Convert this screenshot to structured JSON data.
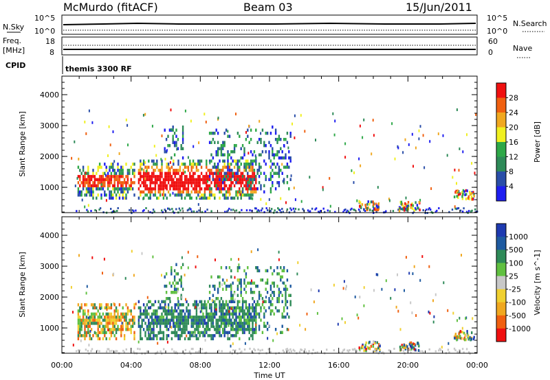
{
  "header": {
    "station": "McMurdo (fitACF)",
    "beam": "Beam 03",
    "date": "15/Jun/2011"
  },
  "left_labels": {
    "nsky": "N.Sky",
    "nsky_top": "10^5",
    "nsky_bot": "10^0",
    "freq": "Freq.",
    "freq_unit": "[MHz]",
    "freq_top": "18",
    "freq_bot": "8",
    "cpid": "CPID",
    "cpid_value": "themis 3300 RF"
  },
  "right_labels": {
    "nsearch": "N.Search",
    "nsearch_top": "10^5",
    "nsearch_bot": "10^0",
    "nave": "Nave",
    "nave_top": "60",
    "nave_bot": "0"
  },
  "colors": {
    "power": [
      "#1e1ef0",
      "#2a4ea8",
      "#2e8a58",
      "#2ea848",
      "#f0f020",
      "#f0a820",
      "#f06010",
      "#f01010"
    ],
    "velocity": [
      "#f01010",
      "#f06010",
      "#f0a820",
      "#f0d030",
      "#c8c8c8",
      "#60c040",
      "#2e8a58",
      "#1e5aa0",
      "#1e3ab0"
    ]
  },
  "chart_data": [
    {
      "type": "heatmap",
      "title": "",
      "xlabel": "",
      "ylabel": "Slant Range [km]",
      "xlim": [
        0,
        24
      ],
      "ylim": [
        180,
        4600
      ],
      "x_ticks": [
        "00:00",
        "04:00",
        "08:00",
        "12:00",
        "16:00",
        "20:00",
        "00:00"
      ],
      "y_ticks": [
        1000,
        2000,
        3000,
        4000
      ],
      "colorbar": {
        "label": "Power [dB]",
        "ticks": [
          "4",
          "8",
          "12",
          "16",
          "20",
          "24",
          "28"
        ],
        "range": [
          0,
          30
        ]
      },
      "regions": [
        {
          "t0": 0.9,
          "t1": 4.2,
          "r0": 700,
          "r1": 1800,
          "level": "mixed"
        },
        {
          "t0": 4.4,
          "t1": 11.2,
          "r0": 650,
          "r1": 1900,
          "level": "strong"
        },
        {
          "t0": 5.9,
          "t1": 7.0,
          "r0": 1900,
          "r1": 3100,
          "level": "weak"
        },
        {
          "t0": 8.5,
          "t1": 13.2,
          "r0": 900,
          "r1": 3000,
          "level": "weak"
        }
      ]
    },
    {
      "type": "heatmap",
      "title": "",
      "xlabel": "Time UT",
      "ylabel": "Slant Range [km]",
      "xlim": [
        0,
        24
      ],
      "ylim": [
        180,
        4600
      ],
      "x_ticks": [
        "00:00",
        "04:00",
        "08:00",
        "12:00",
        "16:00",
        "20:00",
        "00:00"
      ],
      "y_ticks": [
        1000,
        2000,
        3000,
        4000
      ],
      "colorbar": {
        "label": "Velocity [m s^-1]",
        "ticks": [
          "1000",
          "500",
          "100",
          "25",
          "-25",
          "-100",
          "-500",
          "-1000"
        ],
        "range": [
          -1000,
          1000
        ]
      },
      "regions": [
        {
          "t0": 0.9,
          "t1": 4.2,
          "r0": 700,
          "r1": 1800,
          "level": "orange-mix"
        },
        {
          "t0": 4.4,
          "t1": 11.2,
          "r0": 650,
          "r1": 1900,
          "level": "green-blue"
        },
        {
          "t0": 5.9,
          "t1": 7.0,
          "r0": 1900,
          "r1": 3100,
          "level": "green"
        },
        {
          "t0": 8.5,
          "t1": 13.2,
          "r0": 900,
          "r1": 3000,
          "level": "green"
        }
      ]
    }
  ]
}
